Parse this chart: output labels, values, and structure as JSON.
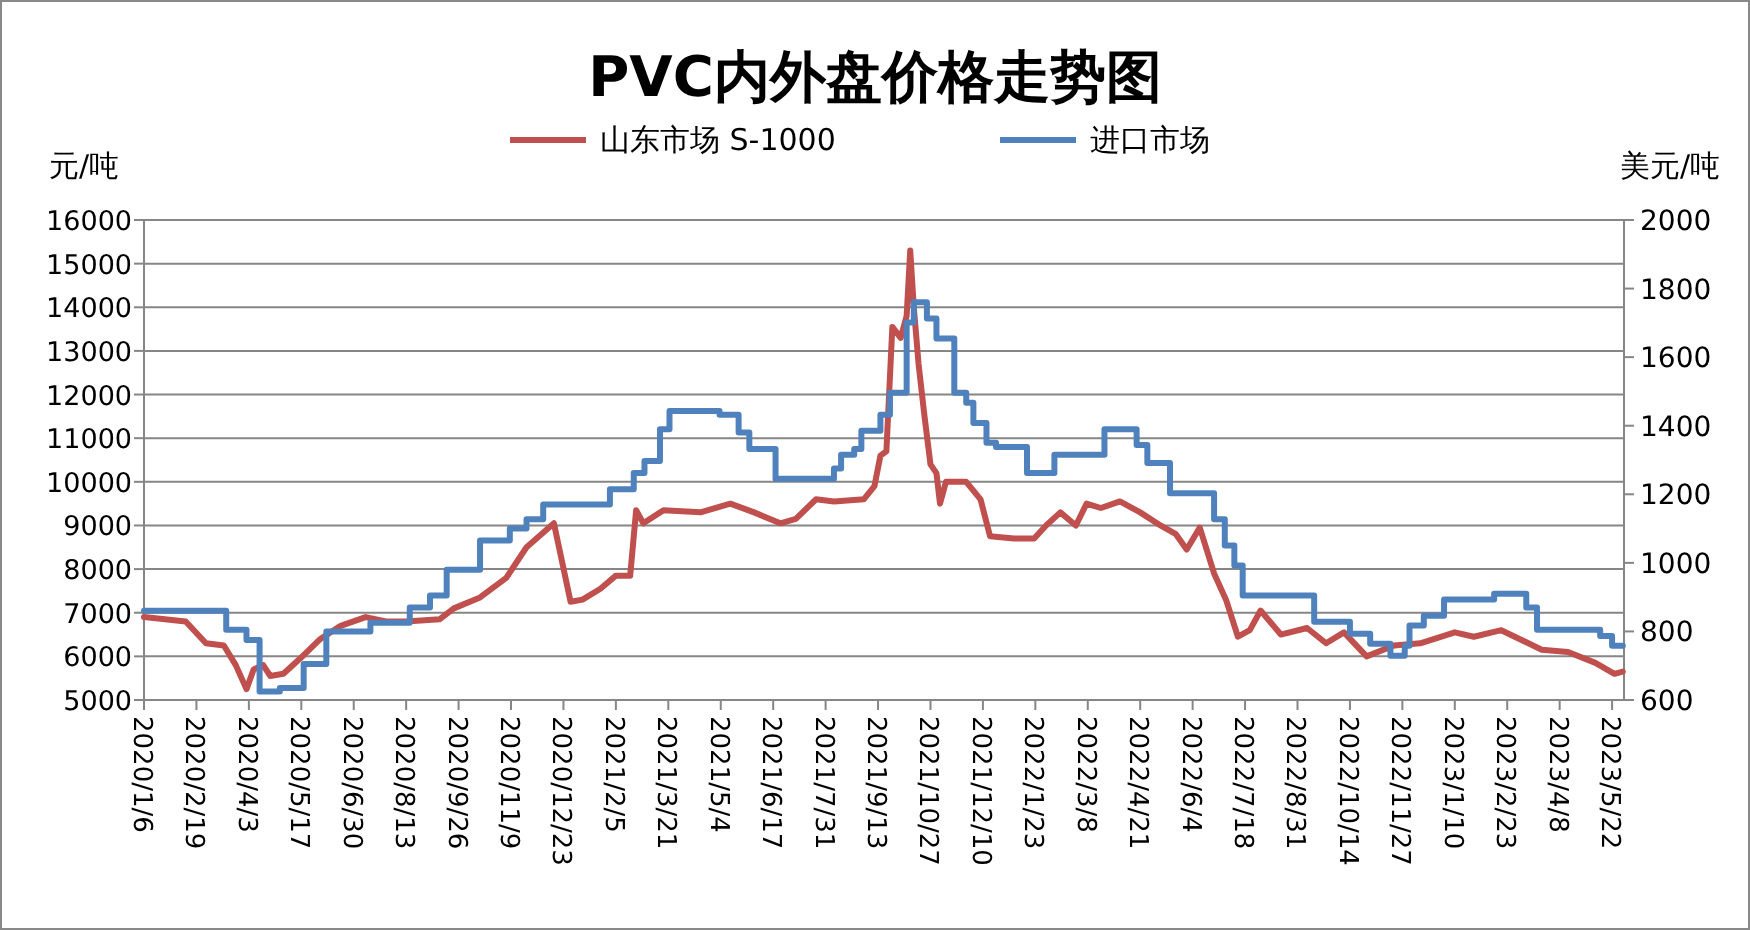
{
  "chart_data": {
    "type": "line",
    "title": "PVC内外盘价格走势图",
    "ylabel": "元/吨",
    "y2label": "美元/吨",
    "xlim": [
      "2020-01-06",
      "2023-06-01"
    ],
    "xticks": [
      {
        "value": "2020-01-06",
        "label": "2020/1/6"
      },
      {
        "value": "2020-02-19",
        "label": "2020/2/19"
      },
      {
        "value": "2020-04-03",
        "label": "2020/4/3"
      },
      {
        "value": "2020-05-17",
        "label": "2020/5/17"
      },
      {
        "value": "2020-06-30",
        "label": "2020/6/30"
      },
      {
        "value": "2020-08-13",
        "label": "2020/8/13"
      },
      {
        "value": "2020-09-26",
        "label": "2020/9/26"
      },
      {
        "value": "2020-11-09",
        "label": "2020/11/9"
      },
      {
        "value": "2020-12-23",
        "label": "2020/12/23"
      },
      {
        "value": "2021-02-05",
        "label": "2021/2/5"
      },
      {
        "value": "2021-03-21",
        "label": "2021/3/21"
      },
      {
        "value": "2021-05-04",
        "label": "2021/5/4"
      },
      {
        "value": "2021-06-17",
        "label": "2021/6/17"
      },
      {
        "value": "2021-07-31",
        "label": "2021/7/31"
      },
      {
        "value": "2021-09-13",
        "label": "2021/9/13"
      },
      {
        "value": "2021-10-27",
        "label": "2021/10/27"
      },
      {
        "value": "2021-12-10",
        "label": "2021/12/10"
      },
      {
        "value": "2022-01-23",
        "label": "2022/1/23"
      },
      {
        "value": "2022-03-08",
        "label": "2022/3/8"
      },
      {
        "value": "2022-04-21",
        "label": "2022/4/21"
      },
      {
        "value": "2022-06-04",
        "label": "2022/6/4"
      },
      {
        "value": "2022-07-18",
        "label": "2022/7/18"
      },
      {
        "value": "2022-08-31",
        "label": "2022/8/31"
      },
      {
        "value": "2022-10-14",
        "label": "2022/10/14"
      },
      {
        "value": "2022-11-27",
        "label": "2022/11/27"
      },
      {
        "value": "2023-01-10",
        "label": "2023/1/10"
      },
      {
        "value": "2023-02-23",
        "label": "2023/2/23"
      },
      {
        "value": "2023-04-08",
        "label": "2023/4/8"
      },
      {
        "value": "2023-05-22",
        "label": "2023/5/22"
      }
    ],
    "ylim": [
      5000,
      16000
    ],
    "yticks": [
      5000,
      6000,
      7000,
      8000,
      9000,
      10000,
      11000,
      12000,
      13000,
      14000,
      15000,
      16000
    ],
    "y2lim": [
      600,
      2000
    ],
    "y2ticks": [
      600,
      800,
      1000,
      1200,
      1400,
      1600,
      1800,
      2000
    ],
    "grid": "y",
    "legend": "top",
    "series": [
      {
        "name": "山东市场 S-1000",
        "color": "#c0504d",
        "x": [
          "2020-01-06",
          "2020-02-10",
          "2020-02-27",
          "2020-03-13",
          "2020-03-23",
          "2020-04-01",
          "2020-04-07",
          "2020-04-15",
          "2020-04-21",
          "2020-05-02",
          "2020-05-16",
          "2020-06-02",
          "2020-06-19",
          "2020-07-10",
          "2020-07-27",
          "2020-08-13",
          "2020-09-10",
          "2020-09-22",
          "2020-10-14",
          "2020-11-05",
          "2020-11-22",
          "2020-12-15",
          "2020-12-29",
          "2021-01-08",
          "2021-01-23",
          "2021-02-05",
          "2021-02-17",
          "2021-02-22",
          "2021-02-28",
          "2021-03-17",
          "2021-04-17",
          "2021-05-12",
          "2021-06-01",
          "2021-06-23",
          "2021-07-06",
          "2021-07-23",
          "2021-08-07",
          "2021-09-01",
          "2021-09-10",
          "2021-09-15",
          "2021-09-20",
          "2021-09-25",
          "2021-10-02",
          "2021-10-07",
          "2021-10-10",
          "2021-10-13",
          "2021-10-17",
          "2021-10-22",
          "2021-10-27",
          "2021-11-01",
          "2021-11-04",
          "2021-11-09",
          "2021-11-26",
          "2021-12-08",
          "2021-12-16",
          "2022-01-05",
          "2022-01-22",
          "2022-02-01",
          "2022-02-13",
          "2022-02-26",
          "2022-03-07",
          "2022-03-19",
          "2022-04-04",
          "2022-04-21",
          "2022-05-08",
          "2022-05-21",
          "2022-05-30",
          "2022-06-10",
          "2022-06-22",
          "2022-07-02",
          "2022-07-12",
          "2022-07-22",
          "2022-07-31",
          "2022-08-17",
          "2022-09-08",
          "2022-09-24",
          "2022-10-09",
          "2022-10-28",
          "2022-11-20",
          "2022-12-12",
          "2023-01-10",
          "2023-01-26",
          "2023-02-18",
          "2023-03-24",
          "2023-04-15",
          "2023-05-08",
          "2023-05-24",
          "2023-05-31"
        ],
        "values": [
          6900,
          6800,
          6300,
          6250,
          5800,
          5250,
          5700,
          5800,
          5550,
          5600,
          5950,
          6400,
          6700,
          6900,
          6800,
          6800,
          6850,
          7100,
          7350,
          7800,
          8500,
          9050,
          7250,
          7300,
          7550,
          7850,
          7850,
          9350,
          9050,
          9350,
          9300,
          9500,
          9300,
          9050,
          9150,
          9600,
          9550,
          9600,
          9900,
          10600,
          10700,
          13550,
          13300,
          13800,
          15300,
          14000,
          12700,
          11500,
          10400,
          10200,
          9500,
          10000,
          10000,
          9600,
          8750,
          8700,
          8700,
          9000,
          9300,
          9000,
          9500,
          9400,
          9550,
          9300,
          9000,
          8800,
          8450,
          8950,
          7900,
          7300,
          6450,
          6600,
          7050,
          6500,
          6650,
          6300,
          6550,
          6000,
          6250,
          6300,
          6550,
          6450,
          6600,
          6150,
          6100,
          5850,
          5600,
          5650
        ]
      },
      {
        "name": "进口市场",
        "color": "#4f81bd",
        "type": "step",
        "axis": "y2",
        "x": [
          "2020-01-06",
          "2020-03-15",
          "2020-04-01",
          "2020-04-12",
          "2020-04-29",
          "2020-05-19",
          "2020-06-07",
          "2020-07-14",
          "2020-08-16",
          "2020-09-02",
          "2020-09-16",
          "2020-10-14",
          "2020-11-08",
          "2020-11-22",
          "2020-12-06",
          "2021-01-31",
          "2021-02-20",
          "2021-03-01",
          "2021-03-14",
          "2021-03-22",
          "2021-05-03",
          "2021-05-19",
          "2021-05-28",
          "2021-06-19",
          "2021-08-07",
          "2021-08-13",
          "2021-08-24",
          "2021-08-30",
          "2021-09-15",
          "2021-09-23",
          "2021-10-07",
          "2021-10-13",
          "2021-10-24",
          "2021-11-01",
          "2021-11-16",
          "2021-11-26",
          "2021-12-02",
          "2021-12-13",
          "2021-12-21",
          "2022-01-16",
          "2022-02-08",
          "2022-03-22",
          "2022-04-18",
          "2022-04-27",
          "2022-05-16",
          "2022-06-22",
          "2022-07-01",
          "2022-07-09",
          "2022-07-16",
          "2022-09-14",
          "2022-10-14",
          "2022-10-31",
          "2022-11-17",
          "2022-11-29",
          "2022-12-03",
          "2022-12-15",
          "2023-01-01",
          "2023-02-12",
          "2023-03-11",
          "2023-03-20",
          "2023-05-12",
          "2023-05-22",
          "2023-05-31"
        ],
        "values": [
          860,
          805,
          775,
          625,
          635,
          705,
          800,
          825,
          870,
          905,
          980,
          1065,
          1100,
          1127,
          1170,
          1215,
          1262,
          1297,
          1390,
          1443,
          1432,
          1380,
          1332,
          1245,
          1275,
          1315,
          1332,
          1385,
          1432,
          1496,
          1701,
          1760,
          1713,
          1654,
          1496,
          1467,
          1408,
          1350,
          1338,
          1262,
          1315,
          1390,
          1344,
          1291,
          1203,
          1127,
          1051,
          992,
          905,
          828,
          793,
          764,
          729,
          758,
          817,
          846,
          893,
          910,
          870,
          805,
          787,
          758,
          758
        ]
      }
    ]
  }
}
